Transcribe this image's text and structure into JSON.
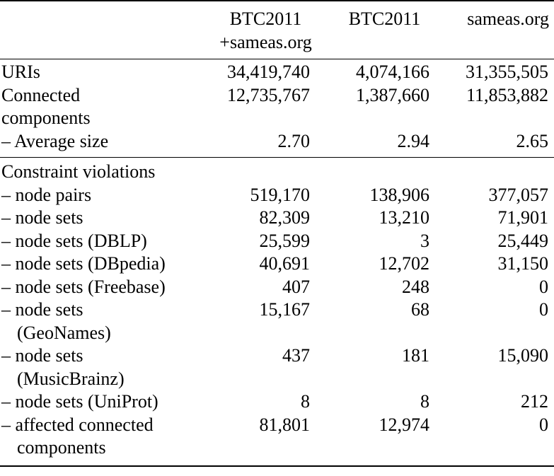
{
  "header": {
    "col_a_line1": "BTC2011",
    "col_a_line2": "+sameas.org",
    "col_b": "BTC2011",
    "col_c": "sameas.org"
  },
  "section1": [
    {
      "label": "URIs",
      "a": "34,419,740",
      "b": "4,074,166",
      "c": "31,355,505"
    },
    {
      "label": "Connected components",
      "a": "12,735,767",
      "b": "1,387,660",
      "c": "11,853,882"
    },
    {
      "label": "– Average size",
      "a": "2.70",
      "b": "2.94",
      "c": "2.65"
    }
  ],
  "section2_title": "Constraint violations",
  "section2": [
    {
      "label": "– node pairs",
      "a": "519,170",
      "b": "138,906",
      "c": "377,057"
    },
    {
      "label": "– node sets",
      "a": "82,309",
      "b": "13,210",
      "c": "71,901"
    },
    {
      "label": "– node sets (DBLP)",
      "a": "25,599",
      "b": "3",
      "c": "25,449"
    },
    {
      "label": "– node sets (DBpedia)",
      "a": "40,691",
      "b": "12,702",
      "c": "31,150"
    },
    {
      "label": "– node sets (Freebase)",
      "a": "407",
      "b": "248",
      "c": "0"
    },
    {
      "label": "– node sets (GeoNames)",
      "a": "15,167",
      "b": "68",
      "c": "0"
    },
    {
      "label": "– node sets (MusicBrainz)",
      "a": "437",
      "b": "181",
      "c": "15,090"
    },
    {
      "label": "– node sets (UniProt)",
      "a": "8",
      "b": "8",
      "c": "212"
    },
    {
      "label": "– affected connected components",
      "a": "81,801",
      "b": "12,974",
      "c": "0"
    }
  ]
}
